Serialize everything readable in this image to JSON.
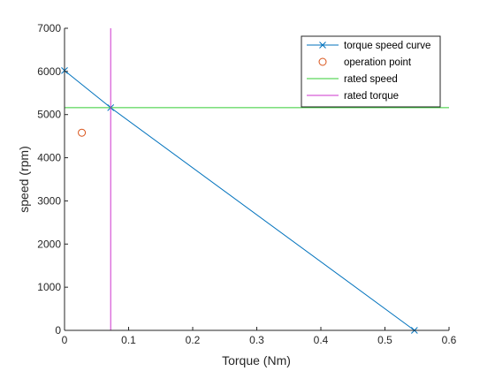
{
  "chart_data": {
    "type": "line",
    "title": "",
    "xlabel": "Torque (Nm)",
    "ylabel": "speed (rpm)",
    "xlim": [
      0,
      0.6
    ],
    "ylim": [
      0,
      7000
    ],
    "xticks": [
      0,
      0.1,
      0.2,
      0.3,
      0.4,
      0.5,
      0.6
    ],
    "xtick_labels": [
      "0",
      "0.1",
      "0.2",
      "0.3",
      "0.4",
      "0.5",
      "0.6"
    ],
    "yticks": [
      0,
      1000,
      2000,
      3000,
      4000,
      5000,
      6000,
      7000
    ],
    "ytick_labels": [
      "0",
      "1000",
      "2000",
      "3000",
      "4000",
      "5000",
      "6000",
      "7000"
    ],
    "grid": false,
    "legend_position": "top-right",
    "series": [
      {
        "name": "torque speed curve",
        "kind": "line-with-x-markers",
        "color": "#0072BD",
        "x": [
          0,
          0.072,
          0.546
        ],
        "y": [
          6020,
          5160,
          0
        ]
      },
      {
        "name": "operation point",
        "kind": "circle-marker",
        "color": "#D95319",
        "x": [
          0.027
        ],
        "y": [
          4580
        ]
      },
      {
        "name": "rated speed",
        "kind": "horizontal-line",
        "color": "#33CC33",
        "y": 5160
      },
      {
        "name": "rated torque",
        "kind": "vertical-line",
        "color": "#CC33CC",
        "x": 0.072
      }
    ]
  }
}
